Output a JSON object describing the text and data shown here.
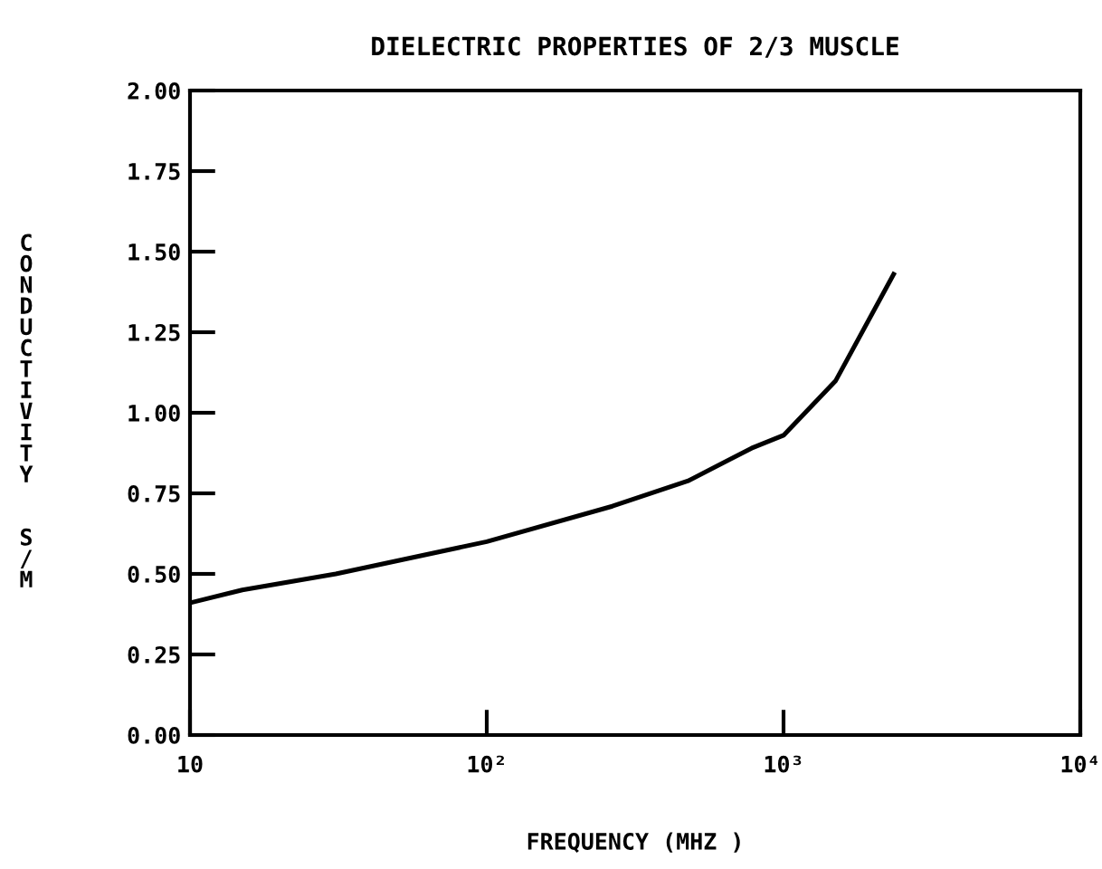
{
  "chart_data": {
    "type": "line",
    "title": "DIELECTRIC PROPERTIES OF 2/3 MUSCLE",
    "xlabel": "FREQUENCY (MHZ )",
    "ylabel": "CONDUCTIVITY  S/M",
    "log": "x",
    "x": [
      10,
      15,
      31,
      100,
      265,
      480,
      780,
      1000,
      1500,
      2350
    ],
    "series": [
      {
        "color": "#000000",
        "values": [
          0.41,
          0.45,
          0.5,
          0.6,
          0.71,
          0.79,
          0.89,
          0.93,
          1.1,
          1.43
        ]
      }
    ],
    "xlim": [
      10,
      10000
    ],
    "ylim": [
      0,
      2
    ],
    "xticks": [
      {
        "value": 10,
        "label": "10"
      },
      {
        "value": 100,
        "label": "10²"
      },
      {
        "value": 1000,
        "label": "10³"
      },
      {
        "value": 10000,
        "label": "10⁴"
      }
    ],
    "yticks": [
      {
        "value": 0,
        "label": "0.00"
      },
      {
        "value": 0.25,
        "label": "0.25"
      },
      {
        "value": 0.5,
        "label": "0.50"
      },
      {
        "value": 0.75,
        "label": "0.75"
      },
      {
        "value": 1,
        "label": "1.00"
      },
      {
        "value": 1.25,
        "label": "1.25"
      },
      {
        "value": 1.5,
        "label": "1.50"
      },
      {
        "value": 1.75,
        "label": "1.75"
      },
      {
        "value": 2,
        "label": "2.00"
      }
    ],
    "grid": false,
    "marker": "none",
    "line_style": "solid"
  }
}
